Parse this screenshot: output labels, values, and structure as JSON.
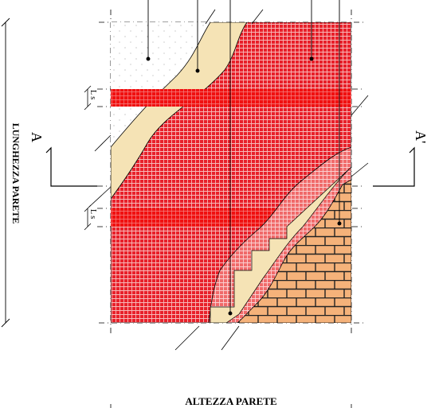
{
  "labels": {
    "wall_length": "LUNGHEZZA PARETE",
    "wall_height": "ALTEZZA PARETE",
    "section_left": "A",
    "section_right": "A'",
    "overlap_upper": "L s",
    "overlap_lower": "L s"
  },
  "colors": {
    "mesh_red": "#e8202a",
    "mesh_band": "#f01010",
    "mesh_light": "#f06a6a",
    "plaster_beige": "#f5e3b5",
    "brick_fill": "#f5b27a",
    "brick_joint": "#222222",
    "line": "#000000"
  }
}
